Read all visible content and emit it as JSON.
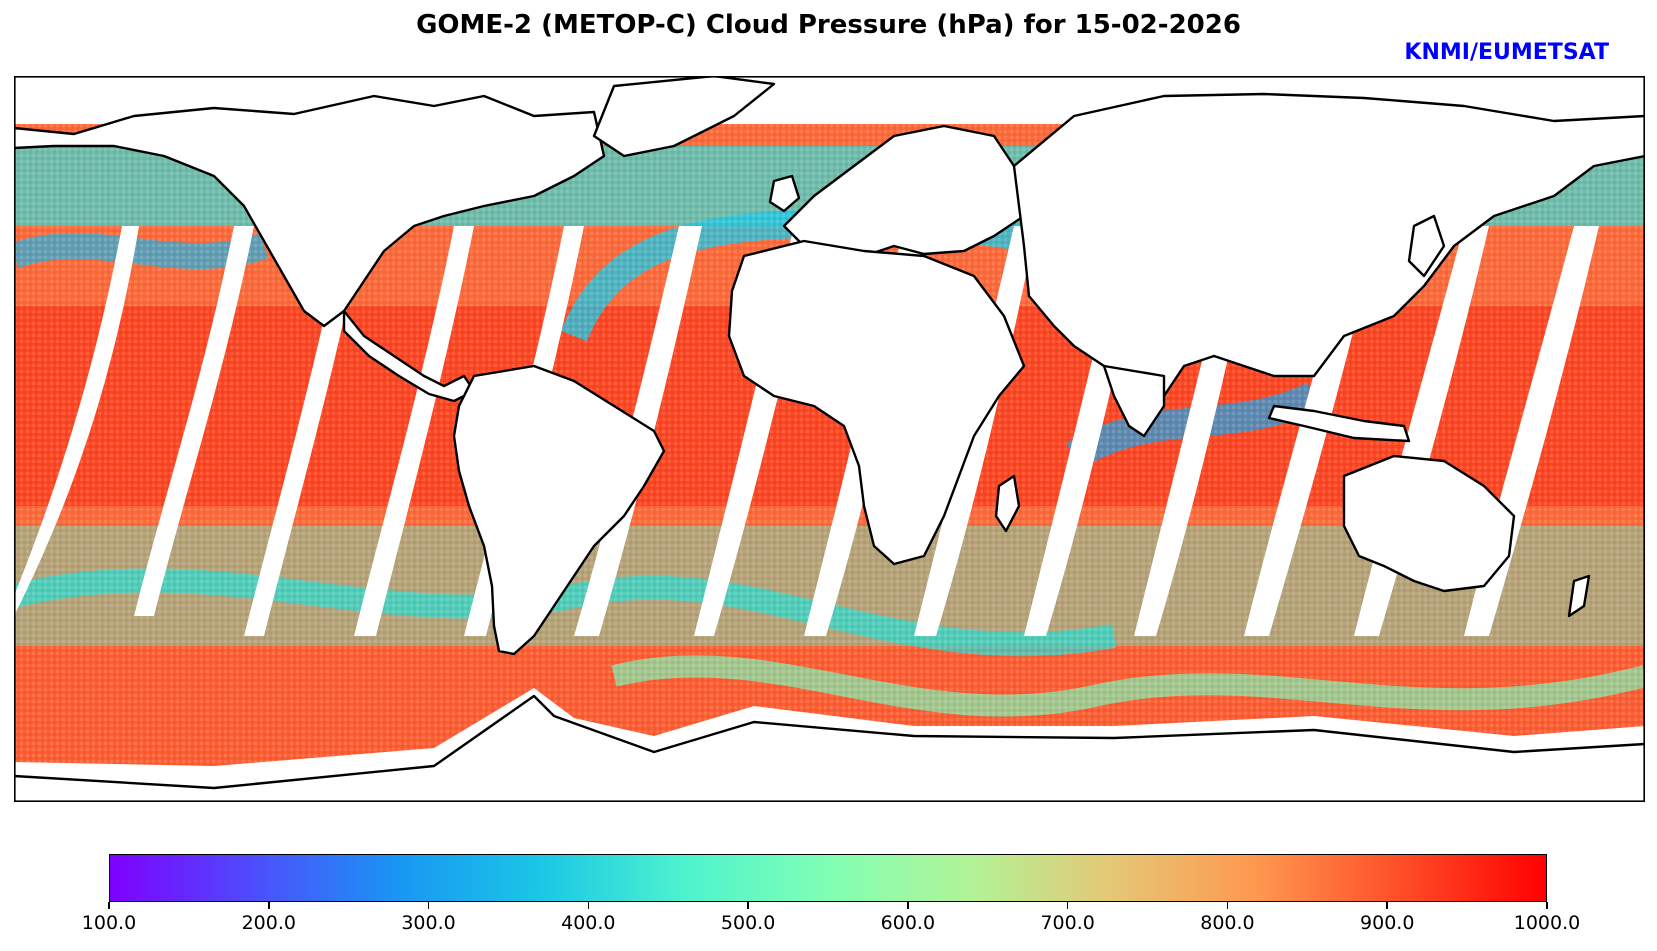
{
  "title": "GOME-2 (METOP-C) Cloud Pressure (hPa) for 15-02-2026",
  "credit": "KNMI/EUMETSAT",
  "colorbar": {
    "min": 100.0,
    "max": 1000.0,
    "tick_labels": [
      "100.0",
      "200.0",
      "300.0",
      "400.0",
      "500.0",
      "600.0",
      "700.0",
      "800.0",
      "900.0",
      "1000.0"
    ],
    "colors": [
      "#7f00ff",
      "#4e4dfc",
      "#1996f3",
      "#1ac7e6",
      "#4df3ce",
      "#80ffb4",
      "#b2f396",
      "#e6c674",
      "#ff964e",
      "#ff4d27",
      "#ff0000"
    ]
  }
}
